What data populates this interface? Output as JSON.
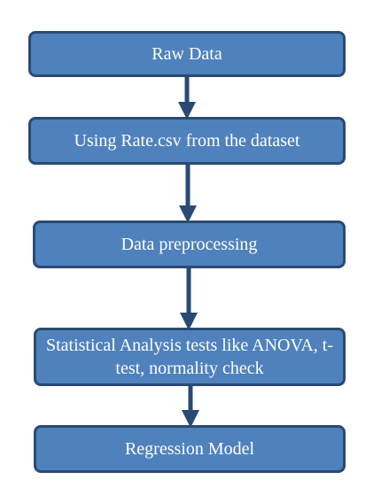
{
  "diagram": {
    "type": "flowchart",
    "colors": {
      "box_fill": "#4f81bd",
      "box_border": "#2a4a73",
      "box_text": "#ffffff",
      "arrow": "#2a4a73"
    },
    "steps": [
      {
        "label": "Raw Data"
      },
      {
        "label": "Using Rate.csv from the dataset"
      },
      {
        "label": "Data preprocessing"
      },
      {
        "label": "Statistical Analysis tests like ANOVA, t-test, normality check"
      },
      {
        "label": "Regression Model"
      }
    ]
  }
}
